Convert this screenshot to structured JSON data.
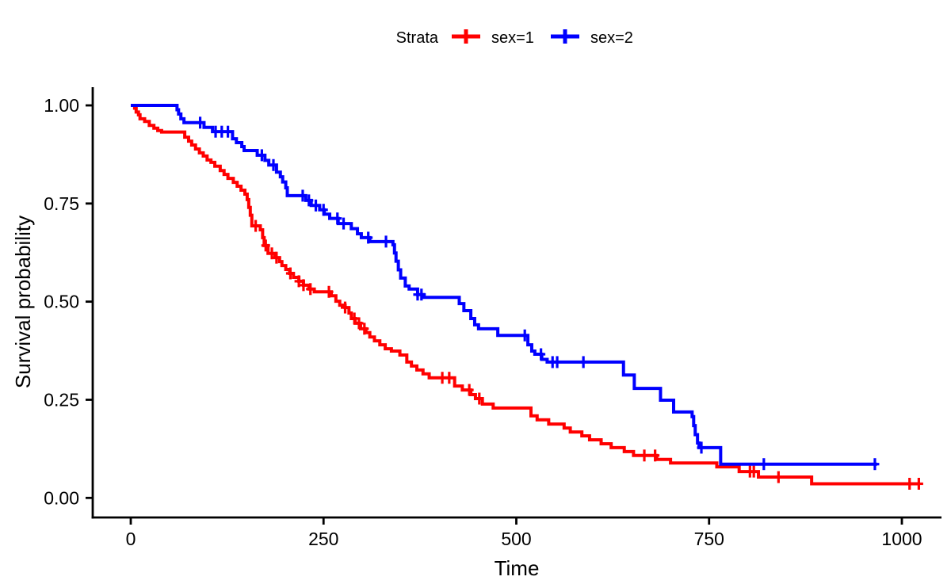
{
  "chart_data": {
    "type": "line",
    "subtype": "kaplan-meier-step-curves",
    "title": "",
    "legend_title": "Strata",
    "legend_position": "top",
    "xlabel": "Time",
    "ylabel": "Survival probability",
    "grid": false,
    "xlim": [
      0,
      1030
    ],
    "ylim": [
      0,
      1
    ],
    "x_ticks": {
      "values": [
        0,
        250,
        500,
        750,
        1000
      ],
      "labels": [
        "0",
        "250",
        "500",
        "750",
        "1000"
      ]
    },
    "y_ticks": {
      "values": [
        0,
        0.25,
        0.5,
        0.75,
        1
      ],
      "labels": [
        "0.00",
        "0.25",
        "0.50",
        "0.75",
        "1.00"
      ]
    },
    "axis_color": "#000000",
    "background_color": "#ffffff",
    "series": [
      {
        "name": "sex=1",
        "color": "#ff0000",
        "end_time": 1022,
        "steps": [
          [
            0,
            1.0
          ],
          [
            5,
            0.993
          ],
          [
            7,
            0.983
          ],
          [
            10,
            0.976
          ],
          [
            12,
            0.966
          ],
          [
            18,
            0.959
          ],
          [
            24,
            0.949
          ],
          [
            30,
            0.942
          ],
          [
            35,
            0.936
          ],
          [
            40,
            0.932
          ],
          [
            70,
            0.919
          ],
          [
            75,
            0.909
          ],
          [
            79,
            0.899
          ],
          [
            84,
            0.889
          ],
          [
            89,
            0.879
          ],
          [
            94,
            0.871
          ],
          [
            99,
            0.861
          ],
          [
            104,
            0.855
          ],
          [
            109,
            0.845
          ],
          [
            116,
            0.834
          ],
          [
            121,
            0.824
          ],
          [
            126,
            0.814
          ],
          [
            133,
            0.804
          ],
          [
            138,
            0.794
          ],
          [
            143,
            0.784
          ],
          [
            148,
            0.774
          ],
          [
            151,
            0.76
          ],
          [
            153,
            0.74
          ],
          [
            155,
            0.72
          ],
          [
            157,
            0.693
          ],
          [
            168,
            0.683
          ],
          [
            171,
            0.663
          ],
          [
            173,
            0.643
          ],
          [
            178,
            0.623
          ],
          [
            187,
            0.612
          ],
          [
            193,
            0.602
          ],
          [
            196,
            0.592
          ],
          [
            201,
            0.582
          ],
          [
            206,
            0.572
          ],
          [
            211,
            0.562
          ],
          [
            218,
            0.552
          ],
          [
            224,
            0.542
          ],
          [
            231,
            0.532
          ],
          [
            238,
            0.525
          ],
          [
            260,
            0.515
          ],
          [
            266,
            0.501
          ],
          [
            271,
            0.491
          ],
          [
            278,
            0.485
          ],
          [
            283,
            0.471
          ],
          [
            286,
            0.457
          ],
          [
            291,
            0.445
          ],
          [
            298,
            0.431
          ],
          [
            305,
            0.421
          ],
          [
            310,
            0.41
          ],
          [
            316,
            0.4
          ],
          [
            323,
            0.39
          ],
          [
            330,
            0.38
          ],
          [
            338,
            0.374
          ],
          [
            349,
            0.364
          ],
          [
            358,
            0.346
          ],
          [
            364,
            0.336
          ],
          [
            371,
            0.326
          ],
          [
            379,
            0.316
          ],
          [
            387,
            0.306
          ],
          [
            420,
            0.285
          ],
          [
            430,
            0.275
          ],
          [
            441,
            0.263
          ],
          [
            447,
            0.253
          ],
          [
            456,
            0.239
          ],
          [
            470,
            0.229
          ],
          [
            519,
            0.209
          ],
          [
            527,
            0.199
          ],
          [
            542,
            0.188
          ],
          [
            562,
            0.178
          ],
          [
            570,
            0.168
          ],
          [
            585,
            0.158
          ],
          [
            595,
            0.148
          ],
          [
            610,
            0.138
          ],
          [
            623,
            0.128
          ],
          [
            640,
            0.118
          ],
          [
            652,
            0.108
          ],
          [
            682,
            0.098
          ],
          [
            700,
            0.089
          ],
          [
            760,
            0.079
          ],
          [
            789,
            0.067
          ],
          [
            814,
            0.053
          ],
          [
            883,
            0.036
          ]
        ],
        "censor_times": [
          162,
          175,
          183,
          189,
          207,
          218,
          224,
          233,
          257,
          278,
          290,
          296,
          303,
          404,
          413,
          439,
          452,
          666,
          680,
          803,
          808,
          840,
          1010,
          1022
        ]
      },
      {
        "name": "sex=2",
        "color": "#0000ff",
        "end_time": 968,
        "steps": [
          [
            0,
            1.0
          ],
          [
            60,
            0.989
          ],
          [
            62,
            0.978
          ],
          [
            65,
            0.966
          ],
          [
            69,
            0.956
          ],
          [
            95,
            0.944
          ],
          [
            106,
            0.933
          ],
          [
            132,
            0.915
          ],
          [
            137,
            0.905
          ],
          [
            144,
            0.895
          ],
          [
            147,
            0.885
          ],
          [
            164,
            0.873
          ],
          [
            174,
            0.86
          ],
          [
            179,
            0.848
          ],
          [
            189,
            0.83
          ],
          [
            194,
            0.818
          ],
          [
            197,
            0.805
          ],
          [
            201,
            0.79
          ],
          [
            203,
            0.77
          ],
          [
            227,
            0.758
          ],
          [
            234,
            0.745
          ],
          [
            245,
            0.734
          ],
          [
            251,
            0.723
          ],
          [
            258,
            0.712
          ],
          [
            269,
            0.699
          ],
          [
            286,
            0.686
          ],
          [
            294,
            0.673
          ],
          [
            299,
            0.663
          ],
          [
            310,
            0.653
          ],
          [
            340,
            0.645
          ],
          [
            342,
            0.624
          ],
          [
            344,
            0.603
          ],
          [
            347,
            0.581
          ],
          [
            350,
            0.56
          ],
          [
            356,
            0.54
          ],
          [
            361,
            0.532
          ],
          [
            372,
            0.518
          ],
          [
            380,
            0.511
          ],
          [
            426,
            0.495
          ],
          [
            432,
            0.477
          ],
          [
            441,
            0.457
          ],
          [
            446,
            0.441
          ],
          [
            451,
            0.431
          ],
          [
            476,
            0.414
          ],
          [
            515,
            0.39
          ],
          [
            520,
            0.374
          ],
          [
            524,
            0.366
          ],
          [
            533,
            0.353
          ],
          [
            540,
            0.346
          ],
          [
            639,
            0.313
          ],
          [
            653,
            0.279
          ],
          [
            687,
            0.249
          ],
          [
            704,
            0.219
          ],
          [
            728,
            0.207
          ],
          [
            730,
            0.184
          ],
          [
            732,
            0.161
          ],
          [
            735,
            0.14
          ],
          [
            737,
            0.128
          ],
          [
            765,
            0.086
          ]
        ],
        "censor_times": [
          90,
          110,
          118,
          126,
          170,
          185,
          223,
          231,
          240,
          250,
          268,
          276,
          308,
          331,
          372,
          377,
          511,
          532,
          547,
          553,
          587,
          740,
          821,
          965
        ]
      }
    ]
  }
}
